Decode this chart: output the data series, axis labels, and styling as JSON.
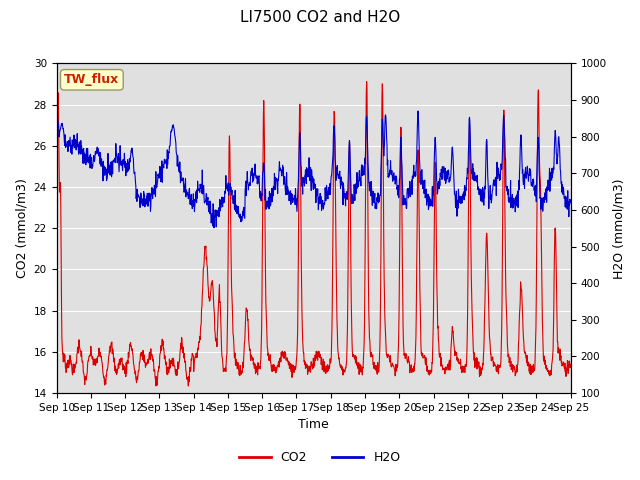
{
  "title": "LI7500 CO2 and H2O",
  "xlabel": "Time",
  "ylabel_left": "CO2 (mmol/m3)",
  "ylabel_right": "H2O (mmol/m3)",
  "ylim_left": [
    14,
    30
  ],
  "ylim_right": [
    100,
    1000
  ],
  "co2_color": "#dd0000",
  "h2o_color": "#0000cc",
  "bg_color": "#e0e0e0",
  "legend_label_co2": "CO2",
  "legend_label_h2o": "H2O",
  "annotation_text": "TW_flux",
  "annotation_color": "#cc2200",
  "annotation_bg": "#ffffcc",
  "x_tick_labels": [
    "Sep 10",
    "Sep 11",
    "Sep 12",
    "Sep 13",
    "Sep 14",
    "Sep 15",
    "Sep 16",
    "Sep 17",
    "Sep 18",
    "Sep 19",
    "Sep 20",
    "Sep 21",
    "Sep 22",
    "Sep 23",
    "Sep 24",
    "Sep 25"
  ],
  "co2_yticks": [
    14,
    16,
    18,
    20,
    22,
    24,
    26,
    28,
    30
  ],
  "h2o_yticks": [
    100,
    200,
    300,
    400,
    500,
    600,
    700,
    800,
    900,
    1000
  ],
  "linewidth": 0.8,
  "title_fontsize": 11,
  "tick_fontsize": 7.5,
  "label_fontsize": 9,
  "n_days": 15,
  "n_per_day": 96
}
